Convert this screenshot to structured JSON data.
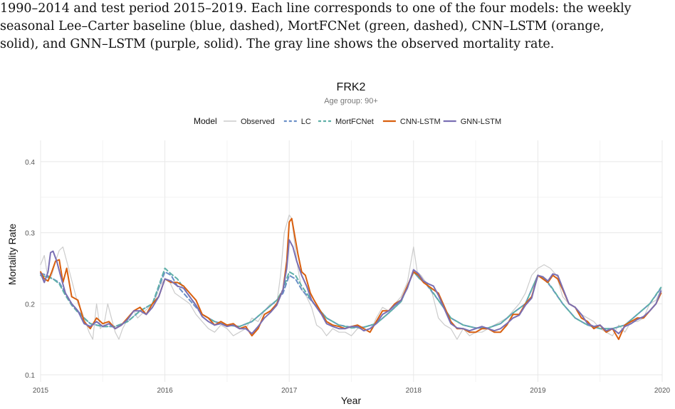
{
  "caption": {
    "lines": [
      "1990–2014 and test period 2015–2019. Each line corresponds to one of the four models: the weekly",
      "seasonal Lee–Carter baseline (blue, dashed), MortFCNet (green, dashed), CNN–LSTM (orange,",
      "solid), and GNN–LSTM (purple, solid). The gray line shows the observed mortality rate."
    ]
  },
  "chart_data": {
    "type": "line",
    "title": "FRK2",
    "subtitle": "Age group: 90+",
    "xlabel": "Year",
    "ylabel": "Mortality Rate",
    "xlim": [
      2015,
      2020
    ],
    "ylim": [
      0.09,
      0.43
    ],
    "x_ticks": [
      "2015",
      "2016",
      "2017",
      "2018",
      "2019",
      "2020"
    ],
    "y_ticks": [
      "0.1",
      "0.2",
      "0.3",
      "0.4"
    ],
    "grid": true,
    "legend": {
      "title": "Model",
      "position": "top",
      "entries": [
        "Observed",
        "LC",
        "MortFCNet",
        "CNN-LSTM",
        "GNN-LSTM"
      ]
    },
    "series": [
      {
        "name": "Observed",
        "color": "#cccccc",
        "dash": "solid",
        "x": [
          2015.0,
          2015.03,
          2015.06,
          2015.09,
          2015.12,
          2015.15,
          2015.18,
          2015.21,
          2015.24,
          2015.27,
          2015.3,
          2015.33,
          2015.36,
          2015.39,
          2015.42,
          2015.45,
          2015.48,
          2015.51,
          2015.54,
          2015.57,
          2015.6,
          2015.63,
          2015.66,
          2015.69,
          2015.72,
          2015.75,
          2015.78,
          2015.81,
          2015.84,
          2015.87,
          2015.9,
          2015.93,
          2015.96,
          2016.0,
          2016.04,
          2016.08,
          2016.12,
          2016.16,
          2016.2,
          2016.25,
          2016.3,
          2016.35,
          2016.4,
          2016.45,
          2016.5,
          2016.55,
          2016.6,
          2016.65,
          2016.7,
          2016.75,
          2016.8,
          2016.85,
          2016.9,
          2016.93,
          2016.96,
          2017.0,
          2017.02,
          2017.04,
          2017.07,
          2017.1,
          2017.14,
          2017.18,
          2017.22,
          2017.26,
          2017.3,
          2017.35,
          2017.4,
          2017.45,
          2017.5,
          2017.55,
          2017.6,
          2017.65,
          2017.7,
          2017.75,
          2017.8,
          2017.85,
          2017.9,
          2017.95,
          2018.0,
          2018.03,
          2018.06,
          2018.1,
          2018.15,
          2018.2,
          2018.25,
          2018.3,
          2018.35,
          2018.4,
          2018.45,
          2018.5,
          2018.55,
          2018.6,
          2018.65,
          2018.7,
          2018.75,
          2018.8,
          2018.85,
          2018.9,
          2018.95,
          2019.0,
          2019.05,
          2019.1,
          2019.15,
          2019.2,
          2019.25,
          2019.3,
          2019.35,
          2019.4,
          2019.45,
          2019.5,
          2019.55,
          2019.6,
          2019.65,
          2019.7,
          2019.75,
          2019.8,
          2019.85,
          2019.9,
          2019.95,
          2019.99
        ],
        "y": [
          0.255,
          0.268,
          0.235,
          0.24,
          0.26,
          0.275,
          0.28,
          0.26,
          0.24,
          0.22,
          0.2,
          0.19,
          0.175,
          0.16,
          0.15,
          0.2,
          0.165,
          0.17,
          0.2,
          0.18,
          0.16,
          0.15,
          0.165,
          0.175,
          0.185,
          0.19,
          0.18,
          0.185,
          0.19,
          0.195,
          0.2,
          0.21,
          0.225,
          0.235,
          0.23,
          0.215,
          0.21,
          0.205,
          0.2,
          0.185,
          0.175,
          0.165,
          0.16,
          0.17,
          0.165,
          0.155,
          0.16,
          0.165,
          0.18,
          0.175,
          0.19,
          0.2,
          0.2,
          0.24,
          0.3,
          0.325,
          0.32,
          0.29,
          0.25,
          0.22,
          0.21,
          0.195,
          0.17,
          0.165,
          0.155,
          0.165,
          0.16,
          0.16,
          0.155,
          0.165,
          0.165,
          0.16,
          0.18,
          0.195,
          0.19,
          0.2,
          0.21,
          0.23,
          0.28,
          0.245,
          0.24,
          0.23,
          0.215,
          0.18,
          0.17,
          0.165,
          0.15,
          0.165,
          0.155,
          0.16,
          0.16,
          0.165,
          0.17,
          0.175,
          0.18,
          0.19,
          0.2,
          0.215,
          0.24,
          0.25,
          0.255,
          0.25,
          0.24,
          0.21,
          0.2,
          0.195,
          0.185,
          0.18,
          0.175,
          0.165,
          0.16,
          0.155,
          0.17,
          0.16,
          0.175,
          0.175,
          0.18,
          0.2,
          0.205,
          0.22
        ]
      },
      {
        "name": "LC",
        "color": "#6b8fc7",
        "dash": "dashed",
        "x": [
          2015.0,
          2015.05,
          2015.1,
          2015.15,
          2015.2,
          2015.25,
          2015.3,
          2015.35,
          2015.4,
          2015.5,
          2015.6,
          2015.7,
          2015.8,
          2015.9,
          2016.0,
          2016.05,
          2016.1,
          2016.2,
          2016.3,
          2016.4,
          2016.5,
          2016.6,
          2016.7,
          2016.8,
          2016.9,
          2016.95,
          2017.0,
          2017.05,
          2017.1,
          2017.2,
          2017.3,
          2017.4,
          2017.5,
          2017.6,
          2017.7,
          2017.8,
          2017.9,
          2018.0,
          2018.05,
          2018.1,
          2018.2,
          2018.3,
          2018.4,
          2018.5,
          2018.6,
          2018.7,
          2018.8,
          2018.9,
          2019.0,
          2019.05,
          2019.1,
          2019.2,
          2019.3,
          2019.4,
          2019.5,
          2019.6,
          2019.7,
          2019.8,
          2019.9,
          2019.99
        ],
        "y": [
          0.243,
          0.24,
          0.235,
          0.23,
          0.215,
          0.2,
          0.19,
          0.18,
          0.172,
          0.168,
          0.168,
          0.175,
          0.19,
          0.2,
          0.245,
          0.24,
          0.225,
          0.205,
          0.185,
          0.175,
          0.17,
          0.168,
          0.175,
          0.19,
          0.205,
          0.215,
          0.24,
          0.235,
          0.22,
          0.2,
          0.18,
          0.17,
          0.167,
          0.167,
          0.172,
          0.187,
          0.203,
          0.245,
          0.235,
          0.228,
          0.205,
          0.18,
          0.17,
          0.166,
          0.166,
          0.172,
          0.187,
          0.2,
          0.24,
          0.235,
          0.225,
          0.2,
          0.18,
          0.17,
          0.165,
          0.165,
          0.17,
          0.185,
          0.2,
          0.222
        ]
      },
      {
        "name": "MortFCNet",
        "color": "#5fb0a8",
        "dash": "dashed",
        "x": [
          2015.0,
          2015.05,
          2015.1,
          2015.15,
          2015.2,
          2015.25,
          2015.3,
          2015.35,
          2015.4,
          2015.5,
          2015.6,
          2015.7,
          2015.8,
          2015.9,
          2016.0,
          2016.05,
          2016.1,
          2016.2,
          2016.3,
          2016.4,
          2016.5,
          2016.6,
          2016.7,
          2016.8,
          2016.9,
          2016.95,
          2017.0,
          2017.05,
          2017.1,
          2017.2,
          2017.3,
          2017.4,
          2017.5,
          2017.6,
          2017.7,
          2017.8,
          2017.9,
          2018.0,
          2018.05,
          2018.1,
          2018.2,
          2018.3,
          2018.4,
          2018.5,
          2018.6,
          2018.7,
          2018.8,
          2018.9,
          2019.0,
          2019.05,
          2019.1,
          2019.2,
          2019.3,
          2019.4,
          2019.5,
          2019.6,
          2019.7,
          2019.8,
          2019.9,
          2019.99
        ],
        "y": [
          0.24,
          0.238,
          0.235,
          0.228,
          0.212,
          0.198,
          0.188,
          0.18,
          0.172,
          0.168,
          0.168,
          0.175,
          0.19,
          0.2,
          0.25,
          0.242,
          0.235,
          0.21,
          0.185,
          0.175,
          0.17,
          0.168,
          0.175,
          0.19,
          0.205,
          0.22,
          0.245,
          0.24,
          0.225,
          0.2,
          0.18,
          0.17,
          0.166,
          0.167,
          0.172,
          0.187,
          0.203,
          0.245,
          0.235,
          0.23,
          0.205,
          0.18,
          0.17,
          0.166,
          0.166,
          0.172,
          0.187,
          0.2,
          0.24,
          0.236,
          0.226,
          0.2,
          0.18,
          0.17,
          0.165,
          0.165,
          0.17,
          0.185,
          0.2,
          0.223
        ]
      },
      {
        "name": "CNN-LSTM",
        "color": "#d95f0e",
        "dash": "solid",
        "x": [
          2015.0,
          2015.03,
          2015.06,
          2015.09,
          2015.12,
          2015.15,
          2015.18,
          2015.21,
          2015.25,
          2015.3,
          2015.35,
          2015.4,
          2015.45,
          2015.5,
          2015.55,
          2015.6,
          2015.65,
          2015.7,
          2015.75,
          2015.8,
          2015.85,
          2015.9,
          2015.95,
          2016.0,
          2016.05,
          2016.1,
          2016.15,
          2016.2,
          2016.25,
          2016.3,
          2016.35,
          2016.4,
          2016.45,
          2016.5,
          2016.55,
          2016.6,
          2016.65,
          2016.7,
          2016.75,
          2016.8,
          2016.85,
          2016.9,
          2016.95,
          2016.98,
          2017.0,
          2017.02,
          2017.04,
          2017.07,
          2017.1,
          2017.13,
          2017.17,
          2017.2,
          2017.25,
          2017.3,
          2017.35,
          2017.4,
          2017.45,
          2017.5,
          2017.55,
          2017.6,
          2017.65,
          2017.7,
          2017.75,
          2017.8,
          2017.85,
          2017.9,
          2017.95,
          2018.0,
          2018.04,
          2018.08,
          2018.12,
          2018.16,
          2018.2,
          2018.25,
          2018.3,
          2018.35,
          2018.4,
          2018.45,
          2018.5,
          2018.55,
          2018.6,
          2018.65,
          2018.7,
          2018.75,
          2018.8,
          2018.85,
          2018.9,
          2018.95,
          2019.0,
          2019.04,
          2019.08,
          2019.12,
          2019.16,
          2019.2,
          2019.25,
          2019.3,
          2019.35,
          2019.4,
          2019.45,
          2019.5,
          2019.55,
          2019.6,
          2019.65,
          2019.7,
          2019.75,
          2019.8,
          2019.85,
          2019.9,
          2019.95,
          2019.99
        ],
        "y": [
          0.245,
          0.235,
          0.232,
          0.245,
          0.26,
          0.262,
          0.23,
          0.25,
          0.21,
          0.205,
          0.175,
          0.165,
          0.18,
          0.172,
          0.175,
          0.165,
          0.17,
          0.18,
          0.19,
          0.195,
          0.185,
          0.2,
          0.21,
          0.235,
          0.23,
          0.23,
          0.225,
          0.215,
          0.205,
          0.185,
          0.18,
          0.17,
          0.175,
          0.17,
          0.172,
          0.165,
          0.168,
          0.155,
          0.165,
          0.185,
          0.19,
          0.2,
          0.22,
          0.26,
          0.315,
          0.32,
          0.3,
          0.27,
          0.245,
          0.24,
          0.215,
          0.205,
          0.19,
          0.175,
          0.17,
          0.168,
          0.165,
          0.168,
          0.17,
          0.165,
          0.16,
          0.175,
          0.19,
          0.19,
          0.2,
          0.205,
          0.225,
          0.245,
          0.24,
          0.23,
          0.225,
          0.22,
          0.215,
          0.195,
          0.175,
          0.165,
          0.165,
          0.16,
          0.16,
          0.165,
          0.165,
          0.16,
          0.16,
          0.17,
          0.185,
          0.185,
          0.2,
          0.21,
          0.24,
          0.235,
          0.23,
          0.24,
          0.235,
          0.22,
          0.2,
          0.195,
          0.18,
          0.175,
          0.165,
          0.17,
          0.16,
          0.165,
          0.15,
          0.17,
          0.175,
          0.18,
          0.18,
          0.19,
          0.2,
          0.215
        ]
      },
      {
        "name": "GNN-LSTM",
        "color": "#7a6fb3",
        "dash": "solid",
        "x": [
          2015.0,
          2015.03,
          2015.06,
          2015.08,
          2015.1,
          2015.13,
          2015.16,
          2015.2,
          2015.25,
          2015.3,
          2015.35,
          2015.4,
          2015.45,
          2015.5,
          2015.55,
          2015.6,
          2015.65,
          2015.7,
          2015.75,
          2015.8,
          2015.85,
          2015.9,
          2015.95,
          2016.0,
          2016.05,
          2016.1,
          2016.15,
          2016.2,
          2016.25,
          2016.3,
          2016.35,
          2016.4,
          2016.45,
          2016.5,
          2016.55,
          2016.6,
          2016.65,
          2016.7,
          2016.75,
          2016.8,
          2016.85,
          2016.9,
          2016.95,
          2016.98,
          2017.0,
          2017.03,
          2017.06,
          2017.1,
          2017.14,
          2017.18,
          2017.22,
          2017.26,
          2017.3,
          2017.35,
          2017.4,
          2017.45,
          2017.5,
          2017.55,
          2017.6,
          2017.65,
          2017.7,
          2017.75,
          2017.8,
          2017.85,
          2017.9,
          2017.95,
          2018.0,
          2018.04,
          2018.08,
          2018.12,
          2018.16,
          2018.2,
          2018.25,
          2018.3,
          2018.35,
          2018.4,
          2018.45,
          2018.5,
          2018.55,
          2018.6,
          2018.65,
          2018.7,
          2018.75,
          2018.8,
          2018.85,
          2018.9,
          2018.95,
          2019.0,
          2019.04,
          2019.08,
          2019.12,
          2019.16,
          2019.2,
          2019.25,
          2019.3,
          2019.35,
          2019.4,
          2019.45,
          2019.5,
          2019.55,
          2019.6,
          2019.65,
          2019.7,
          2019.75,
          2019.8,
          2019.85,
          2019.9,
          2019.95,
          2019.99
        ],
        "y": [
          0.243,
          0.23,
          0.245,
          0.272,
          0.274,
          0.26,
          0.24,
          0.215,
          0.2,
          0.19,
          0.172,
          0.168,
          0.175,
          0.168,
          0.172,
          0.165,
          0.17,
          0.178,
          0.19,
          0.19,
          0.185,
          0.195,
          0.21,
          0.235,
          0.232,
          0.225,
          0.222,
          0.21,
          0.198,
          0.182,
          0.175,
          0.17,
          0.172,
          0.168,
          0.17,
          0.165,
          0.165,
          0.158,
          0.168,
          0.18,
          0.188,
          0.198,
          0.22,
          0.25,
          0.29,
          0.28,
          0.26,
          0.24,
          0.225,
          0.205,
          0.195,
          0.185,
          0.172,
          0.168,
          0.165,
          0.165,
          0.168,
          0.168,
          0.162,
          0.165,
          0.172,
          0.185,
          0.19,
          0.198,
          0.205,
          0.222,
          0.248,
          0.242,
          0.232,
          0.228,
          0.225,
          0.212,
          0.192,
          0.172,
          0.166,
          0.165,
          0.162,
          0.165,
          0.168,
          0.165,
          0.162,
          0.165,
          0.172,
          0.18,
          0.184,
          0.198,
          0.208,
          0.24,
          0.238,
          0.232,
          0.242,
          0.24,
          0.222,
          0.2,
          0.195,
          0.185,
          0.172,
          0.168,
          0.17,
          0.162,
          0.165,
          0.158,
          0.168,
          0.172,
          0.178,
          0.182,
          0.19,
          0.2,
          0.218
        ]
      }
    ]
  }
}
